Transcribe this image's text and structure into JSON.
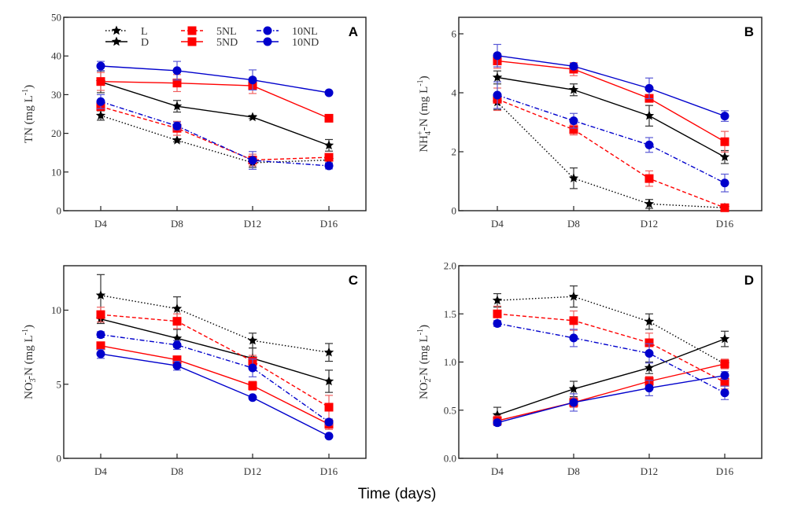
{
  "figure": {
    "xtitle": "Time (days)"
  },
  "legend": [
    {
      "label": "L",
      "series": "L"
    },
    {
      "label": "D",
      "series": "D"
    },
    {
      "label": "5NL",
      "series": "5NL"
    },
    {
      "label": "5ND",
      "series": "5ND"
    },
    {
      "label": "10NL",
      "series": "10NL"
    },
    {
      "label": "10ND",
      "series": "10ND"
    }
  ],
  "series_styles": {
    "L": {
      "color": "#000000",
      "marker": "star",
      "dash": "dotted"
    },
    "D": {
      "color": "#000000",
      "marker": "star",
      "dash": "solid"
    },
    "5NL": {
      "color": "#ff0000",
      "marker": "square",
      "dash": "dashed"
    },
    "5ND": {
      "color": "#ff0000",
      "marker": "square",
      "dash": "solid"
    },
    "10NL": {
      "color": "#0000cc",
      "marker": "circle",
      "dash": "dashdot"
    },
    "10ND": {
      "color": "#0000cc",
      "marker": "circle",
      "dash": "solid"
    }
  },
  "chart_data": [
    {
      "type": "line",
      "panel": "A",
      "title": "",
      "xlabel": "",
      "ylabel": "TN (mg L-1)",
      "ylabel_parts": {
        "main": "TN  (mg L",
        "sup": "-1",
        "end": ")"
      },
      "categories": [
        "D4",
        "D8",
        "D12",
        "D16"
      ],
      "ylim": [
        0,
        50
      ],
      "yticks": [
        0,
        10,
        20,
        30,
        40,
        50
      ],
      "ytick_labels": [
        "0",
        "10",
        "20",
        "30",
        "40",
        "50"
      ],
      "legend_position": "top",
      "series": [
        {
          "name": "L",
          "values": [
            24.6,
            18.2,
            12.4,
            13.1
          ],
          "errors": [
            1.2,
            0.4,
            1.2,
            0.8
          ]
        },
        {
          "name": "D",
          "values": [
            33.3,
            27.0,
            24.2,
            16.9
          ],
          "errors": [
            2.8,
            1.5,
            0.4,
            1.5
          ]
        },
        {
          "name": "5NL",
          "values": [
            26.9,
            21.3,
            13.1,
            13.8
          ],
          "errors": [
            1.0,
            1.8,
            1.5,
            0.8
          ]
        },
        {
          "name": "5ND",
          "values": [
            33.4,
            33.0,
            32.3,
            23.9
          ],
          "errors": [
            2.3,
            2.2,
            2.0,
            0.4
          ]
        },
        {
          "name": "10NL",
          "values": [
            28.2,
            21.9,
            13.0,
            11.6
          ],
          "errors": [
            1.8,
            1.0,
            2.3,
            0.8
          ]
        },
        {
          "name": "10ND",
          "values": [
            37.4,
            36.2,
            33.8,
            30.5
          ],
          "errors": [
            1.2,
            2.4,
            2.6,
            0.3
          ]
        }
      ]
    },
    {
      "type": "line",
      "panel": "B",
      "title": "",
      "xlabel": "",
      "ylabel": "NH4+-N (mg L-1)",
      "ylabel_parts": {
        "main": "NH",
        "sub": "4",
        "sup2": "+",
        "mid": "-N  (mg L",
        "sup": "-1",
        "end": ")"
      },
      "categories": [
        "D4",
        "D8",
        "D12",
        "D16"
      ],
      "ylim": [
        0,
        6.56
      ],
      "yticks": [
        0,
        2,
        4,
        6
      ],
      "ytick_labels": [
        "0",
        "2",
        "4",
        "6"
      ],
      "series": [
        {
          "name": "L",
          "values": [
            3.68,
            1.1,
            0.23,
            0.1
          ],
          "errors": [
            0.25,
            0.35,
            0.15,
            0.05
          ]
        },
        {
          "name": "D",
          "values": [
            4.52,
            4.1,
            3.22,
            1.82
          ],
          "errors": [
            0.22,
            0.2,
            0.35,
            0.22
          ]
        },
        {
          "name": "5NL",
          "values": [
            3.78,
            2.75,
            1.09,
            0.1
          ],
          "errors": [
            0.38,
            0.18,
            0.26,
            0.05
          ]
        },
        {
          "name": "5ND",
          "values": [
            5.08,
            4.8,
            3.81,
            2.34
          ],
          "errors": [
            0.25,
            0.22,
            0.12,
            0.35
          ]
        },
        {
          "name": "10NL",
          "values": [
            3.92,
            3.05,
            2.23,
            0.94
          ],
          "errors": [
            0.45,
            0.25,
            0.25,
            0.3
          ]
        },
        {
          "name": "10ND",
          "values": [
            5.26,
            4.9,
            4.15,
            3.21
          ],
          "errors": [
            0.38,
            0.1,
            0.35,
            0.18
          ]
        }
      ]
    },
    {
      "type": "line",
      "panel": "C",
      "title": "",
      "xlabel": "",
      "ylabel": "NO3--N (mg L-1)",
      "ylabel_parts": {
        "main": "NO",
        "sub": "3",
        "sup2": "-",
        "mid": "-N  (mg L",
        "sup": "-1",
        "end": ")"
      },
      "categories": [
        "D4",
        "D8",
        "D12",
        "D16"
      ],
      "ylim": [
        0,
        13
      ],
      "yticks": [
        0,
        5,
        10
      ],
      "ytick_labels": [
        "0",
        "5",
        "10"
      ],
      "series": [
        {
          "name": "L",
          "values": [
            11.0,
            10.1,
            7.95,
            7.15
          ],
          "errors": [
            1.4,
            0.8,
            0.5,
            0.6
          ]
        },
        {
          "name": "D",
          "values": [
            9.4,
            8.1,
            6.75,
            5.2
          ],
          "errors": [
            0.3,
            0.6,
            0.7,
            0.75
          ]
        },
        {
          "name": "5NL",
          "values": [
            9.7,
            9.25,
            6.55,
            3.45
          ],
          "errors": [
            0.5,
            0.5,
            0.4,
            0.8
          ]
        },
        {
          "name": "5ND",
          "values": [
            7.6,
            6.65,
            4.9,
            2.3
          ],
          "errors": [
            0.2,
            0.25,
            0.3,
            0.35
          ]
        },
        {
          "name": "10NL",
          "values": [
            8.35,
            7.65,
            6.1,
            2.45
          ],
          "errors": [
            0.2,
            0.3,
            0.6,
            0.2
          ]
        },
        {
          "name": "10ND",
          "values": [
            7.05,
            6.25,
            4.1,
            1.5
          ],
          "errors": [
            0.3,
            0.3,
            0.1,
            0.1
          ]
        }
      ]
    },
    {
      "type": "line",
      "panel": "D",
      "title": "",
      "xlabel": "",
      "ylabel": "NO2--N (mg L-1)",
      "ylabel_parts": {
        "main": "NO",
        "sub": "2",
        "sup2": "-",
        "mid": "-N  (mg L",
        "sup": "-1",
        "end": ")"
      },
      "categories": [
        "D4",
        "D8",
        "D12",
        "D16"
      ],
      "ylim": [
        0,
        2.0
      ],
      "yticks": [
        0,
        0.5,
        1.0,
        1.5,
        2.0
      ],
      "ytick_labels": [
        "0.0",
        "0.5",
        "1.0",
        "1.5",
        "2.0"
      ],
      "series": [
        {
          "name": "L",
          "values": [
            1.64,
            1.68,
            1.42,
            0.98
          ],
          "errors": [
            0.07,
            0.11,
            0.08,
            0.04
          ]
        },
        {
          "name": "D",
          "values": [
            0.45,
            0.72,
            0.94,
            1.24
          ],
          "errors": [
            0.08,
            0.08,
            0.06,
            0.08
          ]
        },
        {
          "name": "5NL",
          "values": [
            1.5,
            1.43,
            1.2,
            0.79
          ],
          "errors": [
            0.08,
            0.1,
            0.1,
            0.07
          ]
        },
        {
          "name": "5ND",
          "values": [
            0.39,
            0.58,
            0.8,
            0.98
          ],
          "errors": [
            0.05,
            0.05,
            0.05,
            0.05
          ]
        },
        {
          "name": "10NL",
          "values": [
            1.4,
            1.25,
            1.09,
            0.68
          ],
          "errors": [
            0.03,
            0.09,
            0.1,
            0.07
          ]
        },
        {
          "name": "10ND",
          "values": [
            0.37,
            0.58,
            0.73,
            0.86
          ],
          "errors": [
            0.03,
            0.09,
            0.08,
            0.04
          ]
        }
      ]
    }
  ]
}
